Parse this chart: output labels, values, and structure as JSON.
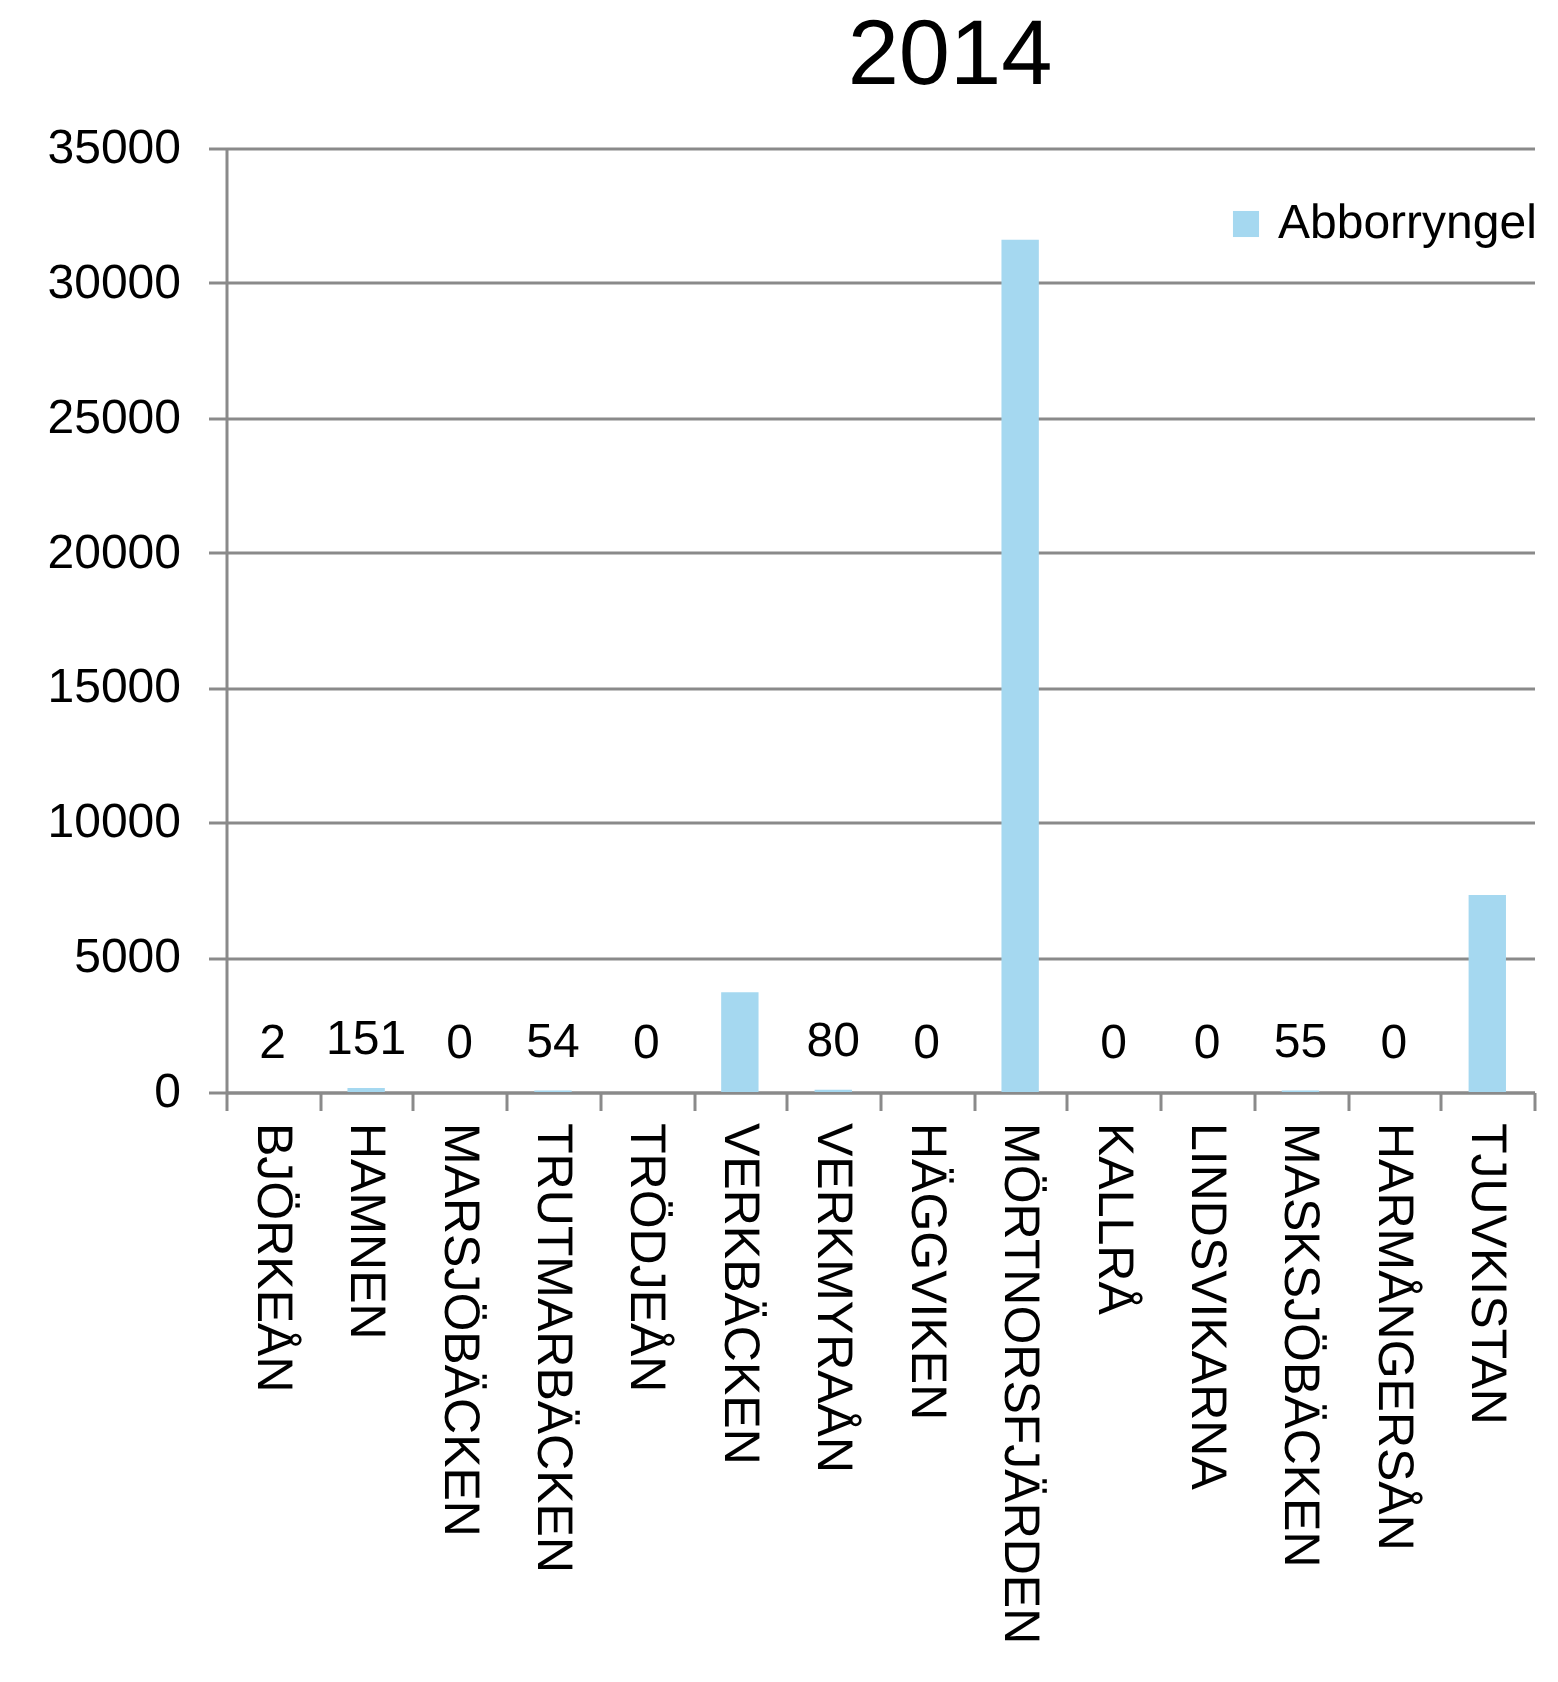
{
  "chart_data": {
    "type": "bar",
    "title": "2014",
    "categories": [
      "BJÖRKEÅN",
      "HAMNEN",
      "MARSJÖBÄCKEN",
      "TRUTMARBÄCKEN",
      "TRÖDJEÅN",
      "VERKBÄCKEN",
      "VERKMYRAÅN",
      "HÄGGVIKEN",
      "MÖRTNORSFJÄRDEN",
      "KALLRÅ",
      "LINDSVIKARNA",
      "MASKSJÖBÄCKEN",
      "HARMÅNGERSÅN",
      "TJUVKISTAN"
    ],
    "series": [
      {
        "name": "Abborryngel",
        "color": "#a5d8f0",
        "values": [
          2,
          151,
          0,
          54,
          0,
          3700,
          80,
          0,
          31600,
          0,
          0,
          55,
          0,
          7300
        ],
        "value_labels": [
          "2",
          "151",
          "0",
          "54",
          "0",
          null,
          "80",
          "0",
          null,
          "0",
          "0",
          "55",
          "0",
          null
        ]
      }
    ],
    "ylim": [
      0,
      35000
    ],
    "yticks": [
      0,
      5000,
      10000,
      15000,
      20000,
      25000,
      30000,
      35000
    ],
    "grid": "y",
    "legend": "top right"
  }
}
